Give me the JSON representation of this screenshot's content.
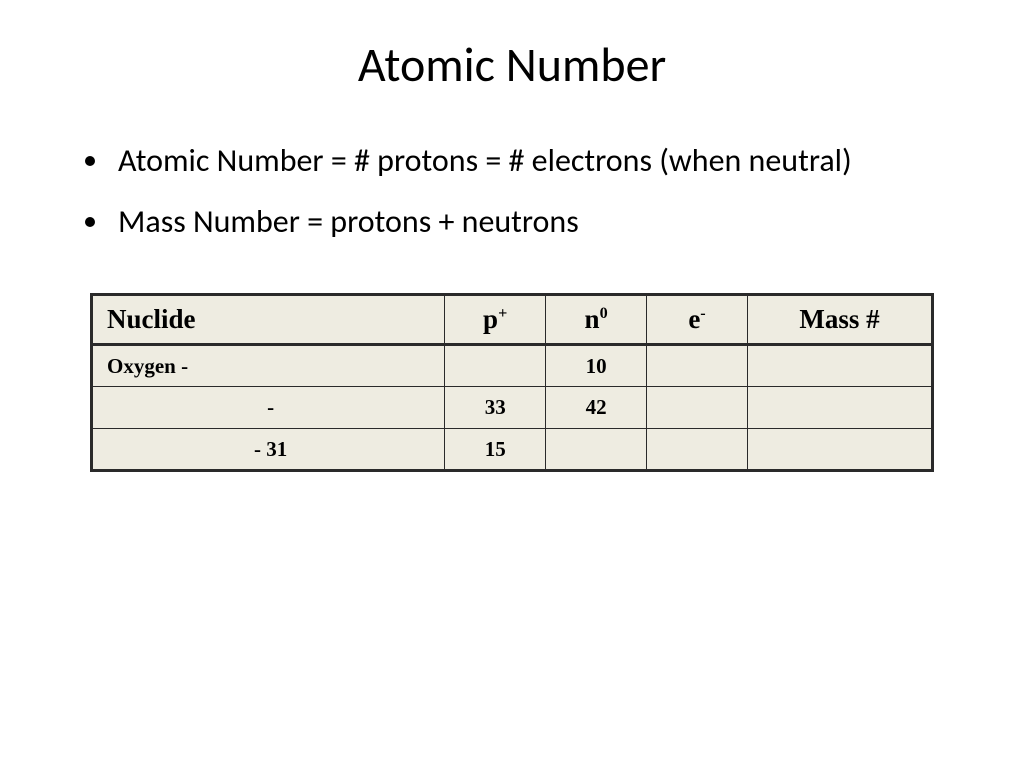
{
  "title": "Atomic Number",
  "bullets": [
    "Atomic Number = # protons = # electrons (when neutral)",
    "Mass Number = protons + neutrons"
  ],
  "table": {
    "background_color": "#eeece1",
    "border_color": "#2a2a2a",
    "outer_border_width": 3,
    "inner_border_width": 1,
    "header_fontsize": 27,
    "body_fontsize": 21,
    "font_family": "Comic Sans MS",
    "columns": {
      "nuclide": {
        "label": "Nuclide",
        "width_pct": 42,
        "align": "left"
      },
      "p": {
        "label": "p",
        "sup": "+",
        "width_pct": 12,
        "align": "center"
      },
      "n": {
        "label": "n",
        "sup": "0",
        "width_pct": 12,
        "align": "center"
      },
      "e": {
        "label": "e",
        "sup": "-",
        "width_pct": 12,
        "align": "center"
      },
      "mass": {
        "label": "Mass #",
        "width_pct": 22,
        "align": "center"
      }
    },
    "rows": [
      {
        "nuclide": "Oxygen -",
        "nuclide_align": "left",
        "p": "",
        "n": "10",
        "e": "",
        "mass": ""
      },
      {
        "nuclide": "-",
        "nuclide_align": "center",
        "p": "33",
        "n": "42",
        "e": "",
        "mass": ""
      },
      {
        "nuclide": "- 31",
        "nuclide_align": "center",
        "p": "15",
        "n": "",
        "e": "",
        "mass": ""
      }
    ]
  }
}
